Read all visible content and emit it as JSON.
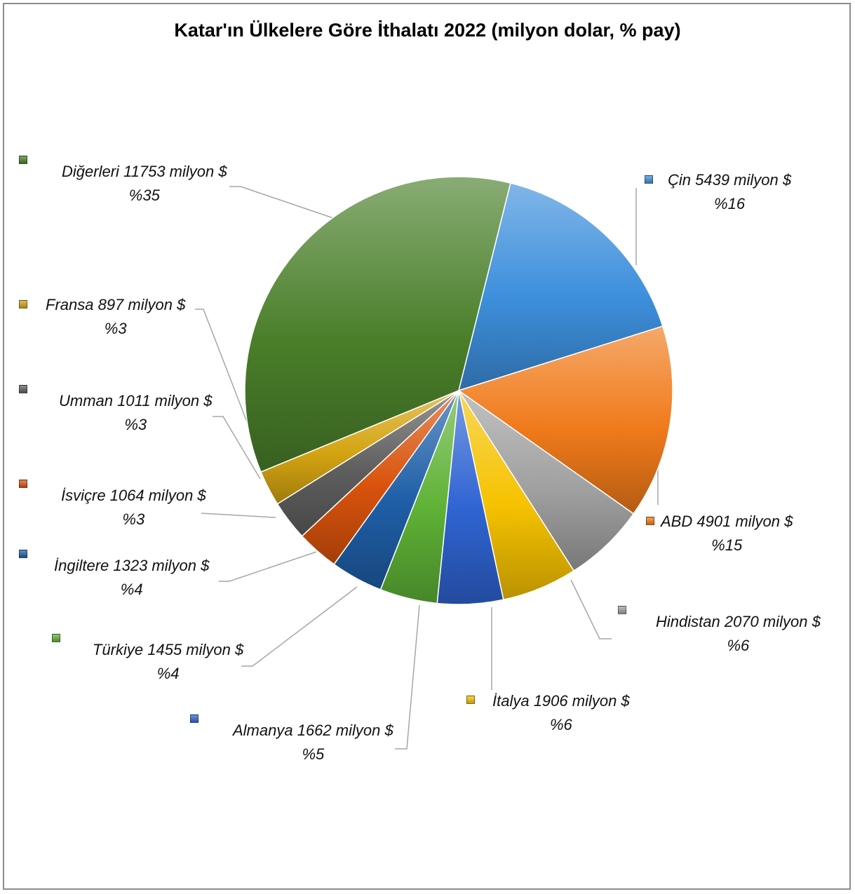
{
  "chart_data": {
    "type": "pie",
    "title": "Katar'ın Ülkelere Göre İthalatı 2022 (milyon dolar, % pay)",
    "unit": "milyon $",
    "slices": [
      {
        "name": "Çin",
        "value": 5439,
        "percent": 16,
        "color": "#3d8fdc",
        "label": "Çin 5439 milyon $",
        "pct_label": "%16"
      },
      {
        "name": "ABD",
        "value": 4901,
        "percent": 15,
        "color": "#f07a1a",
        "label": "ABD 4901 milyon $",
        "pct_label": "%15"
      },
      {
        "name": "Hindistan",
        "value": 2070,
        "percent": 6,
        "color": "#a0a0a0",
        "label": "Hindistan 2070 milyon $",
        "pct_label": "%6"
      },
      {
        "name": "İtalya",
        "value": 1906,
        "percent": 6,
        "color": "#f6c200",
        "label": "İtalya 1906 milyon $",
        "pct_label": "%6"
      },
      {
        "name": "Almanya",
        "value": 1662,
        "percent": 5,
        "color": "#2f64d2",
        "label": "Almanya 1662 milyon $",
        "pct_label": "%5"
      },
      {
        "name": "Türkiye",
        "value": 1455,
        "percent": 4,
        "color": "#5fb236",
        "label": "Türkiye 1455 milyon $",
        "pct_label": "%4"
      },
      {
        "name": "İngiltere",
        "value": 1323,
        "percent": 4,
        "color": "#1f5fa8",
        "label": "İngiltere 1323 milyon $",
        "pct_label": "%4"
      },
      {
        "name": "İsviçre",
        "value": 1064,
        "percent": 3,
        "color": "#d9530c",
        "label": "İsviçre 1064 milyon $",
        "pct_label": "%3"
      },
      {
        "name": "Umman",
        "value": 1011,
        "percent": 3,
        "color": "#5e5e5e",
        "label": "Umman 1011 milyon $",
        "pct_label": "%3"
      },
      {
        "name": "Fransa",
        "value": 897,
        "percent": 3,
        "color": "#d4a411",
        "label": "Fransa 897 milyon $",
        "pct_label": "%3"
      },
      {
        "name": "Diğerleri",
        "value": 11753,
        "percent": 35,
        "color": "#4a7f2a",
        "label": "Diğerleri 11753 milyon $",
        "pct_label": "%35"
      }
    ],
    "legend": "none",
    "data_labels": "outside-with-leader-lines"
  }
}
